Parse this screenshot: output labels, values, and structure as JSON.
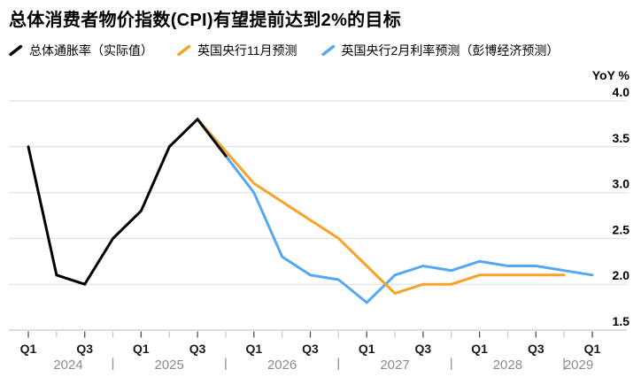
{
  "title": "总体消费者物价指数(CPI)有望提前达到2%的目标",
  "legend": [
    {
      "label": "总体通胀率（实际值）",
      "color": "#000000"
    },
    {
      "label": "英国央行11月预测",
      "color": "#f7a228"
    },
    {
      "label": "英国央行2月利率预测（彭博经济预测）",
      "color": "#54a8f2"
    }
  ],
  "y_axis": {
    "unit_label": "YoY %",
    "tick_labels": [
      "4.0",
      "3.5",
      "3.0",
      "2.5",
      "2.0",
      "1.5"
    ],
    "side": "right"
  },
  "x_axis": {
    "quarter_tick_labels": [
      "Q1",
      "Q3"
    ],
    "years": [
      "2024",
      "2025",
      "2026",
      "2027",
      "2028",
      "2029"
    ]
  },
  "chart_data": {
    "type": "line",
    "title": "总体消费者物价指数(CPI)有望提前达到2%的目标",
    "x_unit": "quarter",
    "x_range": [
      "2024Q1",
      "2029Q1"
    ],
    "ylim": [
      1.5,
      4.0
    ],
    "ylabel": "YoY %",
    "grid": "horizontal",
    "legend_position": "top-left",
    "gridline_values": [
      4.0,
      3.5,
      3.0,
      2.5,
      2.0,
      1.5
    ],
    "series": [
      {
        "name": "总体通胀率（实际值）",
        "color": "#000000",
        "start_quarter_index": 0,
        "quarters": [
          "2024Q1",
          "2024Q2",
          "2024Q3",
          "2024Q4",
          "2025Q1",
          "2025Q2",
          "2025Q3",
          "2025Q4"
        ],
        "values": [
          3.5,
          2.1,
          2.0,
          2.5,
          2.8,
          3.5,
          3.8,
          3.4
        ]
      },
      {
        "name": "英国央行11月预测",
        "color": "#f7a228",
        "start_quarter_index": 6,
        "quarters": [
          "2025Q3",
          "2025Q4",
          "2026Q1",
          "2026Q2",
          "2026Q3",
          "2026Q4",
          "2027Q1",
          "2027Q2",
          "2027Q3",
          "2027Q4",
          "2028Q1",
          "2028Q2",
          "2028Q3",
          "2028Q4"
        ],
        "values": [
          3.8,
          3.45,
          3.1,
          2.9,
          2.7,
          2.5,
          2.2,
          1.9,
          2.0,
          2.0,
          2.1,
          2.1,
          2.1,
          2.1
        ]
      },
      {
        "name": "英国央行2月利率预测（彭博经济预测）",
        "color": "#54a8f2",
        "start_quarter_index": 7,
        "quarters": [
          "2025Q4",
          "2026Q1",
          "2026Q2",
          "2026Q3",
          "2026Q4",
          "2027Q1",
          "2027Q2",
          "2027Q3",
          "2027Q4",
          "2028Q1",
          "2028Q2",
          "2028Q3",
          "2028Q4",
          "2029Q1"
        ],
        "values": [
          3.4,
          3.0,
          2.3,
          2.1,
          2.05,
          1.8,
          2.1,
          2.2,
          2.15,
          2.25,
          2.2,
          2.2,
          2.15,
          2.1
        ]
      }
    ]
  }
}
